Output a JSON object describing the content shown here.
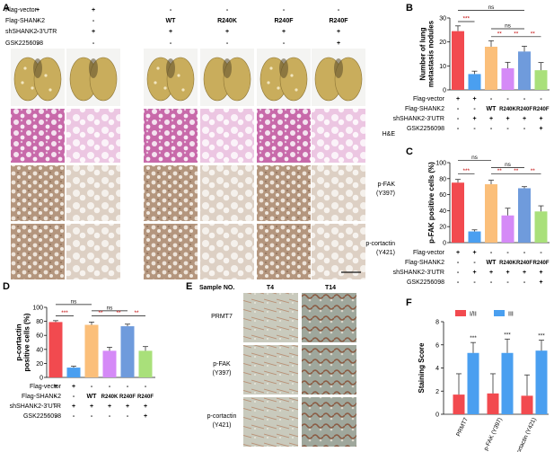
{
  "panel_labels": {
    "A": "A",
    "B": "B",
    "C": "C",
    "D": "D",
    "E": "E",
    "F": "F"
  },
  "panel_a": {
    "row_labels": [
      "Flag-vector",
      "Flag-SHANK2",
      "shSHANK2-3'UTR",
      "GSK2256098"
    ],
    "columns": [
      {
        "marks": [
          "+",
          "-",
          "-",
          "-"
        ]
      },
      {
        "marks": [
          "+",
          "-",
          "+",
          "-"
        ]
      },
      {
        "marks": [
          "-",
          "WT",
          "+",
          "-"
        ]
      },
      {
        "marks": [
          "-",
          "R240K",
          "+",
          "-"
        ]
      },
      {
        "marks": [
          "-",
          "R240F",
          "+",
          "-"
        ]
      },
      {
        "marks": [
          "-",
          "R240F",
          "+",
          "+"
        ]
      }
    ],
    "stain_labels": [
      [
        "H&E"
      ],
      [
        "p-FAK",
        "(Y397)"
      ],
      [
        "p-cortactin",
        "(Y421)"
      ]
    ]
  },
  "panel_e": {
    "header_label": "Sample NO.",
    "sample_labels": [
      "T4",
      "T14"
    ],
    "row_labels": [
      [
        "PRMT7"
      ],
      [
        "p-FAK",
        "(Y397)"
      ],
      [
        "p-cortactin",
        "(Y421)"
      ]
    ]
  },
  "colors": {
    "red": "#f24a4f",
    "blue": "#4a9ff0",
    "orange": "#fbbf7a",
    "purple": "#d58af7",
    "navy_blue": "#6f9bdc",
    "green": "#a9e07a",
    "lung": "#c9ad5c",
    "he": "#c86aaa",
    "ihc": "#b4967e"
  },
  "chart_data": [
    {
      "id": "B",
      "type": "bar",
      "categories": [
        "1",
        "2",
        "3",
        "4",
        "5",
        "6"
      ],
      "values": [
        24.5,
        6.6,
        18.0,
        9.0,
        16.0,
        8.2
      ],
      "errors": [
        2.2,
        1.2,
        2.5,
        2.5,
        2.2,
        3.2
      ],
      "bar_colors": [
        "#f24a4f",
        "#4a9ff0",
        "#fbbf7a",
        "#d58af7",
        "#6f9bdc",
        "#a9e07a"
      ],
      "ylabel": [
        "Number of lung",
        "metastasis nodules"
      ],
      "ylim": [
        0,
        30
      ],
      "yticks": [
        0,
        10,
        20,
        30
      ],
      "significance": [
        {
          "from": 0,
          "to": 1,
          "label": "***",
          "y": 28.5
        },
        {
          "from": 0,
          "to": 4,
          "label": "ns",
          "y": 33.2
        },
        {
          "from": 2,
          "to": 4,
          "label": "ns",
          "y": 25.5
        },
        {
          "from": 2,
          "to": 3,
          "label": "**",
          "y": 22.2
        },
        {
          "from": 3,
          "to": 4,
          "label": "**",
          "y": 22.2
        },
        {
          "from": 4,
          "to": 5,
          "label": "**",
          "y": 22.2
        }
      ],
      "treatment_rows": [
        {
          "label": "Flag-vector",
          "marks": [
            "+",
            "+",
            "-",
            "-",
            "-",
            "-"
          ]
        },
        {
          "label": "Flag-SHANK2",
          "marks": [
            "-",
            "-",
            "WT",
            "R240K",
            "R240F",
            "R240F"
          ]
        },
        {
          "label": "shSHANK2-3'UTR",
          "marks": [
            "-",
            "+",
            "+",
            "+",
            "+",
            "+"
          ]
        },
        {
          "label": "GSK2256098",
          "marks": [
            "-",
            "-",
            "-",
            "-",
            "-",
            "+"
          ]
        }
      ]
    },
    {
      "id": "C",
      "type": "bar",
      "categories": [
        "1",
        "2",
        "3",
        "4",
        "5",
        "6"
      ],
      "values": [
        75,
        14,
        73,
        34,
        68,
        39
      ],
      "errors": [
        4,
        2,
        5,
        9,
        2,
        7
      ],
      "bar_colors": [
        "#f24a4f",
        "#4a9ff0",
        "#fbbf7a",
        "#d58af7",
        "#6f9bdc",
        "#a9e07a"
      ],
      "ylabel": [
        "p-FAK positive cells (%)"
      ],
      "ylim": [
        0,
        100
      ],
      "yticks": [
        0,
        20,
        40,
        60,
        80,
        100
      ],
      "significance": [
        {
          "from": 0,
          "to": 1,
          "label": "***",
          "y": 86
        },
        {
          "from": 0,
          "to": 2,
          "label": "ns",
          "y": 103
        },
        {
          "from": 2,
          "to": 4,
          "label": "ns",
          "y": 94
        },
        {
          "from": 2,
          "to": 3,
          "label": "**",
          "y": 86
        },
        {
          "from": 3,
          "to": 4,
          "label": "**",
          "y": 86
        },
        {
          "from": 4,
          "to": 5,
          "label": "**",
          "y": 86
        }
      ],
      "treatment_rows": [
        {
          "label": "Flag-vector",
          "marks": [
            "+",
            "+",
            "-",
            "-",
            "-",
            "-"
          ]
        },
        {
          "label": "Flag-SHANK2",
          "marks": [
            "-",
            "-",
            "WT",
            "R240K",
            "R240F",
            "R240F"
          ]
        },
        {
          "label": "shSHANK2-3'UTR",
          "marks": [
            "-",
            "+",
            "+",
            "+",
            "+",
            "+"
          ]
        },
        {
          "label": "GSK2256098",
          "marks": [
            "-",
            "-",
            "-",
            "-",
            "-",
            "+"
          ]
        }
      ]
    },
    {
      "id": "D",
      "type": "bar",
      "categories": [
        "1",
        "2",
        "3",
        "4",
        "5",
        "6"
      ],
      "values": [
        79,
        14,
        75,
        38,
        73,
        38
      ],
      "errors": [
        2,
        2,
        4,
        5,
        3,
        6
      ],
      "bar_colors": [
        "#f24a4f",
        "#4a9ff0",
        "#fbbf7a",
        "#d58af7",
        "#6f9bdc",
        "#a9e07a"
      ],
      "ylabel": [
        "p-cortactin",
        "positive cells (%)"
      ],
      "ylim": [
        0,
        100
      ],
      "yticks": [
        0,
        20,
        40,
        60,
        80,
        100
      ],
      "significance": [
        {
          "from": 0,
          "to": 1,
          "label": "***",
          "y": 88
        },
        {
          "from": 0,
          "to": 2,
          "label": "ns",
          "y": 104
        },
        {
          "from": 2,
          "to": 4,
          "label": "ns",
          "y": 95
        },
        {
          "from": 2,
          "to": 3,
          "label": "**",
          "y": 88
        },
        {
          "from": 3,
          "to": 4,
          "label": "**",
          "y": 88
        },
        {
          "from": 4,
          "to": 5,
          "label": "**",
          "y": 88
        }
      ],
      "treatment_rows": [
        {
          "label": "Flag-vector",
          "marks": [
            "+",
            "+",
            "-",
            "-",
            "-",
            "-"
          ]
        },
        {
          "label": "Flag-SHANK2",
          "marks": [
            "-",
            "-",
            "WT",
            "R240K",
            "R240F",
            "R240F"
          ]
        },
        {
          "label": "shSHANK2-3'UTR",
          "marks": [
            "-",
            "+",
            "+",
            "+",
            "+",
            "+"
          ]
        },
        {
          "label": "GSK2256098",
          "marks": [
            "-",
            "-",
            "-",
            "-",
            "-",
            "+"
          ]
        }
      ]
    },
    {
      "id": "F",
      "type": "bar",
      "categories": [
        "PRMT7",
        "p-FAK (Y397)",
        "p-cortactin (Y421)"
      ],
      "series": [
        {
          "name": "I/II",
          "color": "#f24a4f",
          "values": [
            1.7,
            1.8,
            1.6
          ],
          "errors": [
            1.8,
            1.7,
            1.8
          ]
        },
        {
          "name": "III",
          "color": "#4a9ff0",
          "values": [
            5.3,
            5.3,
            5.5
          ],
          "errors": [
            0.9,
            1.2,
            0.9
          ]
        }
      ],
      "ylabel": "Staining Score",
      "ylim": [
        0,
        8
      ],
      "yticks": [
        0,
        2,
        4,
        6,
        8
      ],
      "significance_labels": [
        "***",
        "***",
        "***"
      ],
      "legend_position": "top"
    }
  ]
}
